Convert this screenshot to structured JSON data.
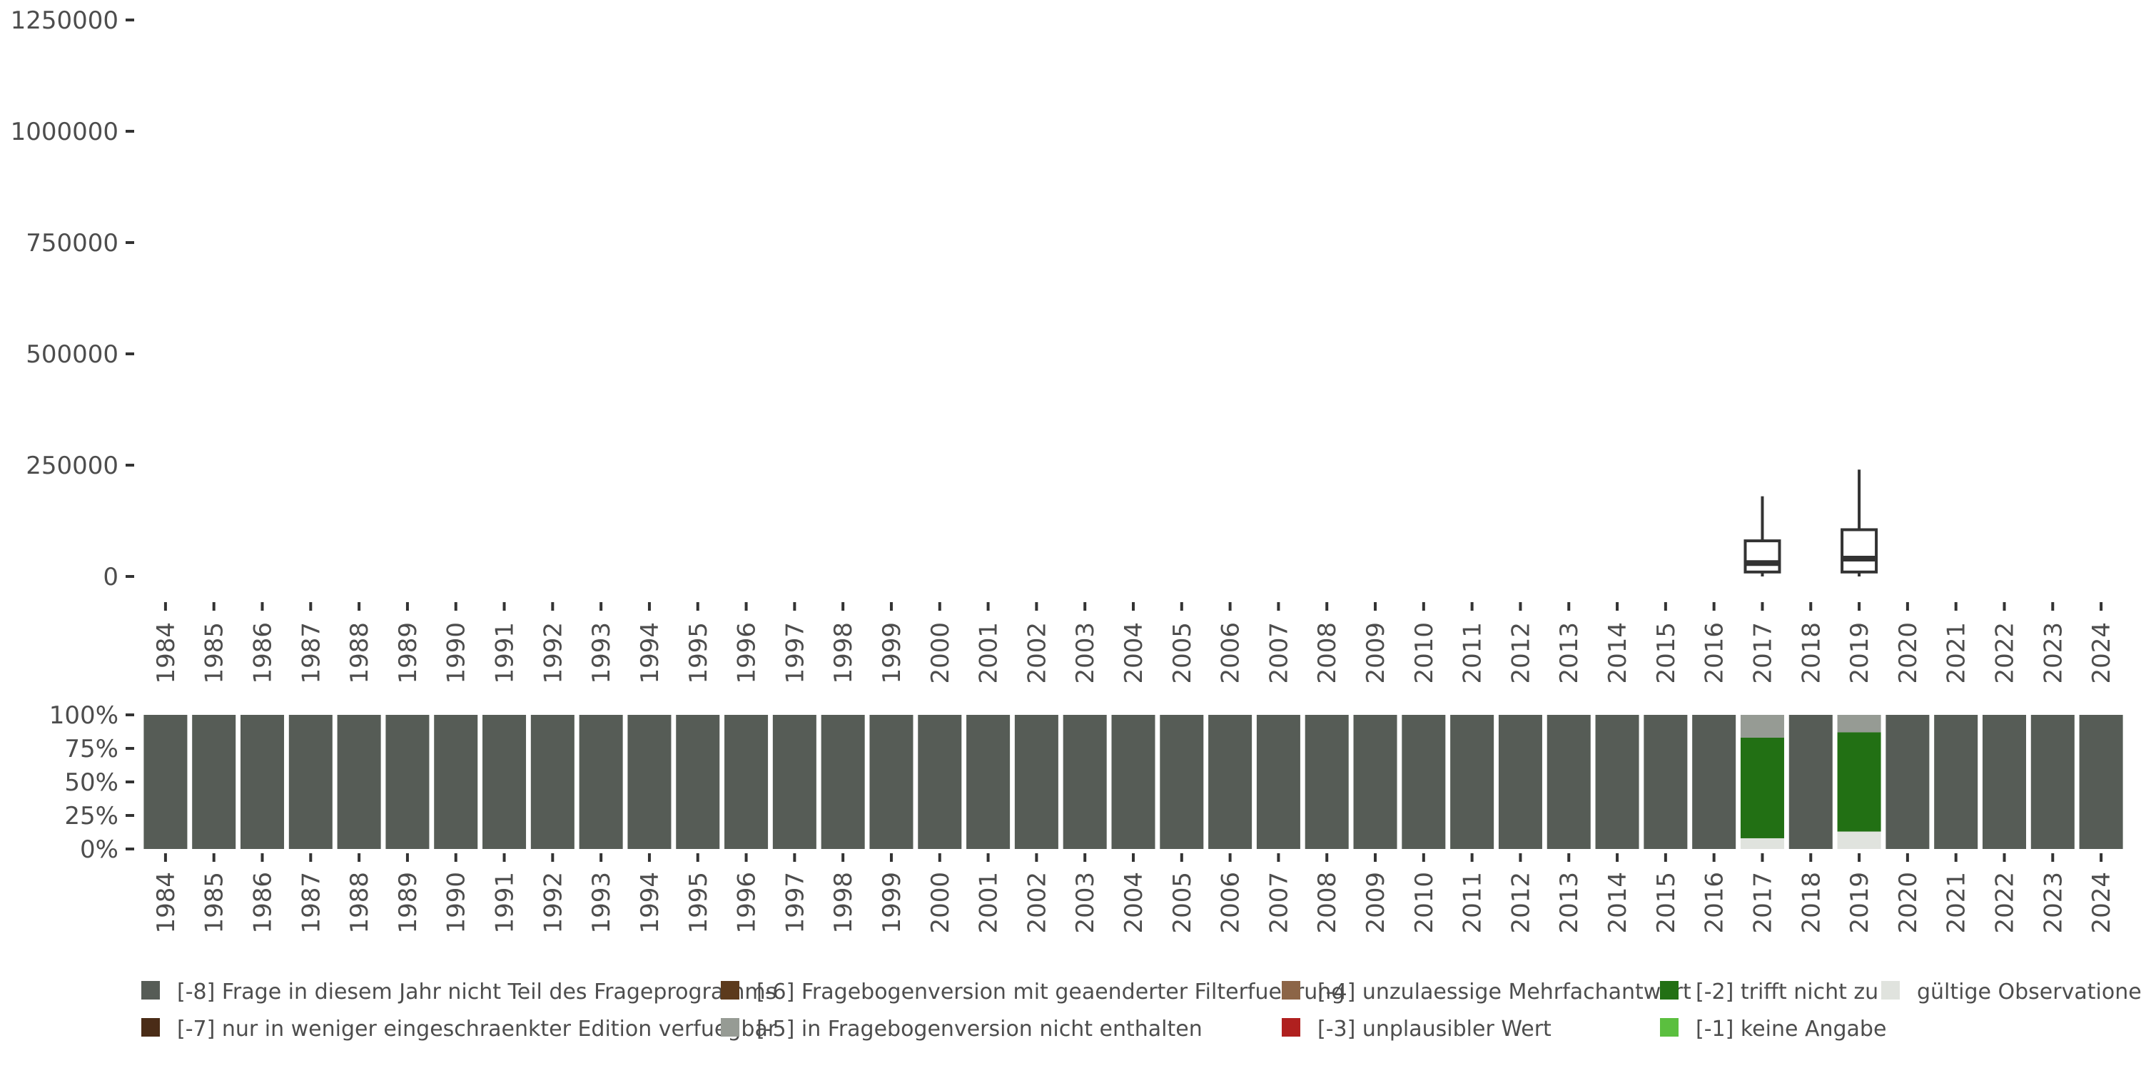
{
  "chart_data": [
    {
      "type": "boxplot",
      "title": "",
      "xlabel": "",
      "ylabel": "",
      "ylim": [
        0,
        1250000
      ],
      "y_ticks": [
        0,
        250000,
        500000,
        750000,
        1000000,
        1250000
      ],
      "y_tick_labels": [
        "0",
        "250000",
        "500000",
        "750000",
        "1000000",
        "1250000"
      ],
      "categories": [
        "1984",
        "1985",
        "1986",
        "1987",
        "1988",
        "1989",
        "1990",
        "1991",
        "1992",
        "1993",
        "1994",
        "1995",
        "1996",
        "1997",
        "1998",
        "1999",
        "2000",
        "2001",
        "2002",
        "2003",
        "2004",
        "2005",
        "2006",
        "2007",
        "2008",
        "2009",
        "2010",
        "2011",
        "2012",
        "2013",
        "2014",
        "2015",
        "2016",
        "2017",
        "2018",
        "2019",
        "2020",
        "2021",
        "2022",
        "2023",
        "2024"
      ],
      "boxes": [
        {
          "year": "2017",
          "min": 0,
          "q1": 10000,
          "median": 30000,
          "q3": 80000,
          "max": 180000
        },
        {
          "year": "2019",
          "min": 0,
          "q1": 10000,
          "median": 40000,
          "q3": 105000,
          "max": 240000
        }
      ]
    },
    {
      "type": "stacked_bar",
      "title": "",
      "ylim": [
        0,
        1
      ],
      "y_ticks": [
        0,
        0.25,
        0.5,
        0.75,
        1
      ],
      "y_tick_labels": [
        "0%",
        "25%",
        "50%",
        "75%",
        "100%"
      ],
      "categories": [
        "1984",
        "1985",
        "1986",
        "1987",
        "1988",
        "1989",
        "1990",
        "1991",
        "1992",
        "1993",
        "1994",
        "1995",
        "1996",
        "1997",
        "1998",
        "1999",
        "2000",
        "2001",
        "2002",
        "2003",
        "2004",
        "2005",
        "2006",
        "2007",
        "2008",
        "2009",
        "2010",
        "2011",
        "2012",
        "2013",
        "2014",
        "2015",
        "2016",
        "2017",
        "2018",
        "2019",
        "2020",
        "2021",
        "2022",
        "2023",
        "2024"
      ],
      "series": [
        {
          "name": "gültige Observationen",
          "color": "#e0e3de",
          "values": [
            0,
            0,
            0,
            0,
            0,
            0,
            0,
            0,
            0,
            0,
            0,
            0,
            0,
            0,
            0,
            0,
            0,
            0,
            0,
            0,
            0,
            0,
            0,
            0,
            0,
            0,
            0,
            0,
            0,
            0,
            0,
            0,
            0,
            0.08,
            0,
            0.13,
            0,
            0,
            0,
            0,
            0
          ]
        },
        {
          "name": "[-1] keine Angabe",
          "color": "#5bbf3f",
          "values": [
            0,
            0,
            0,
            0,
            0,
            0,
            0,
            0,
            0,
            0,
            0,
            0,
            0,
            0,
            0,
            0,
            0,
            0,
            0,
            0,
            0,
            0,
            0,
            0,
            0,
            0,
            0,
            0,
            0,
            0,
            0,
            0,
            0,
            0,
            0,
            0,
            0,
            0,
            0,
            0,
            0
          ]
        },
        {
          "name": "[-2] trifft nicht zu",
          "color": "#227014",
          "values": [
            0,
            0,
            0,
            0,
            0,
            0,
            0,
            0,
            0,
            0,
            0,
            0,
            0,
            0,
            0,
            0,
            0,
            0,
            0,
            0,
            0,
            0,
            0,
            0,
            0,
            0,
            0,
            0,
            0,
            0,
            0,
            0,
            0,
            0.75,
            0,
            0.74,
            0,
            0,
            0,
            0,
            0
          ]
        },
        {
          "name": "[-3] unplausibler Wert",
          "color": "#b0201f",
          "values": [
            0,
            0,
            0,
            0,
            0,
            0,
            0,
            0,
            0,
            0,
            0,
            0,
            0,
            0,
            0,
            0,
            0,
            0,
            0,
            0,
            0,
            0,
            0,
            0,
            0,
            0,
            0,
            0,
            0,
            0,
            0,
            0,
            0,
            0,
            0,
            0,
            0,
            0,
            0,
            0,
            0
          ]
        },
        {
          "name": "[-4] unzulaessige Mehrfachantwort",
          "color": "#8c6547",
          "values": [
            0,
            0,
            0,
            0,
            0,
            0,
            0,
            0,
            0,
            0,
            0,
            0,
            0,
            0,
            0,
            0,
            0,
            0,
            0,
            0,
            0,
            0,
            0,
            0,
            0,
            0,
            0,
            0,
            0,
            0,
            0,
            0,
            0,
            0,
            0,
            0,
            0,
            0,
            0,
            0,
            0
          ]
        },
        {
          "name": "[-5] in Fragebogenversion nicht enthalten",
          "color": "#969b94",
          "values": [
            0,
            0,
            0,
            0,
            0,
            0,
            0,
            0,
            0,
            0,
            0,
            0,
            0,
            0,
            0,
            0,
            0,
            0,
            0,
            0,
            0,
            0,
            0,
            0,
            0,
            0,
            0,
            0,
            0,
            0,
            0,
            0,
            0,
            0.17,
            0,
            0.13,
            0,
            0,
            0,
            0,
            0
          ]
        },
        {
          "name": "[-6] Fragebogenversion mit geaenderter Filterfuehrung",
          "color": "#5c3a1c",
          "values": [
            0,
            0,
            0,
            0,
            0,
            0,
            0,
            0,
            0,
            0,
            0,
            0,
            0,
            0,
            0,
            0,
            0,
            0,
            0,
            0,
            0,
            0,
            0,
            0,
            0,
            0,
            0,
            0,
            0,
            0,
            0,
            0,
            0,
            0,
            0,
            0,
            0,
            0,
            0,
            0,
            0
          ]
        },
        {
          "name": "[-7] nur in weniger eingeschraenkter Edition verfuegbar",
          "color": "#4a2c17",
          "values": [
            0,
            0,
            0,
            0,
            0,
            0,
            0,
            0,
            0,
            0,
            0,
            0,
            0,
            0,
            0,
            0,
            0,
            0,
            0,
            0,
            0,
            0,
            0,
            0,
            0,
            0,
            0,
            0,
            0,
            0,
            0,
            0,
            0,
            0,
            0,
            0,
            0,
            0,
            0,
            0,
            0
          ]
        },
        {
          "name": "[-8] Frage in diesem Jahr nicht Teil des Frageprogramms",
          "color": "#565c56",
          "values": [
            1,
            1,
            1,
            1,
            1,
            1,
            1,
            1,
            1,
            1,
            1,
            1,
            1,
            1,
            1,
            1,
            1,
            1,
            1,
            1,
            1,
            1,
            1,
            1,
            1,
            1,
            1,
            1,
            1,
            1,
            1,
            1,
            1,
            0,
            1,
            0,
            1,
            1,
            1,
            1,
            1
          ]
        }
      ],
      "legend_position": "bottom",
      "legend": [
        {
          "label": "[-8] Frage in diesem Jahr nicht Teil des Frageprogramms",
          "color": "#565c56"
        },
        {
          "label": "[-7] nur in weniger eingeschraenkter Edition verfuegbar",
          "color": "#4a2c17"
        },
        {
          "label": "[-6] Fragebogenversion mit geaenderter Filterfuehrung",
          "color": "#5c3a1c"
        },
        {
          "label": "[-5] in Fragebogenversion nicht enthalten",
          "color": "#969b94"
        },
        {
          "label": "[-4] unzulaessige Mehrfachantwort",
          "color": "#8c6547"
        },
        {
          "label": "[-3] unplausibler Wert",
          "color": "#b0201f"
        },
        {
          "label": "[-2] trifft nicht zu",
          "color": "#227014"
        },
        {
          "label": "[-1] keine Angabe",
          "color": "#5bbf3f"
        },
        {
          "label": "gültige Observationen",
          "color": "#e0e3de"
        }
      ]
    }
  ]
}
